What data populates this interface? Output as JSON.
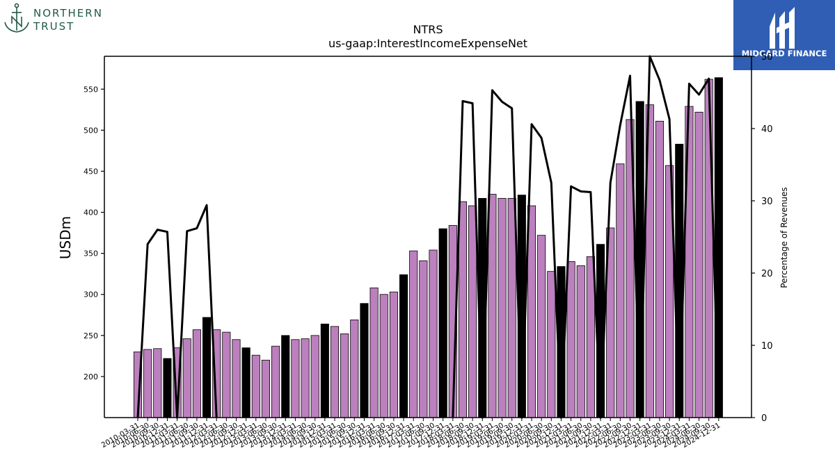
{
  "logos": {
    "left": {
      "line1": "NORTHERN",
      "line2": "TRUST"
    },
    "right": {
      "text": "MIDGARD FINANCE"
    }
  },
  "chart_data": {
    "type": "bar",
    "title": "NTRS",
    "subtitle": "us-gaap:InterestIncomeExpenseNet",
    "ylabel": "USDm",
    "y2label": "Percentage of Revenues",
    "ylim": [
      150,
      590
    ],
    "y2lim": [
      0,
      50
    ],
    "yticks": [
      200,
      250,
      300,
      350,
      400,
      450,
      500,
      550
    ],
    "y2ticks": [
      0,
      10,
      20,
      30,
      40,
      50
    ],
    "colors": {
      "bar": "#bb80bd",
      "bar_q4": "#000000",
      "line": "#000000",
      "axis": "#000000"
    },
    "categories": [
      "2010-03-31",
      "2010-06-30",
      "2010-09-30",
      "2010-12-31",
      "2011-03-31",
      "2011-06-30",
      "2011-09-30",
      "2011-12-31",
      "2012-03-31",
      "2012-06-30",
      "2012-09-30",
      "2012-12-31",
      "2013-03-31",
      "2013-06-30",
      "2013-09-30",
      "2013-12-31",
      "2014-03-31",
      "2014-06-30",
      "2014-09-30",
      "2014-12-31",
      "2015-03-31",
      "2015-06-30",
      "2015-09-30",
      "2015-12-31",
      "2016-03-31",
      "2016-06-30",
      "2016-09-30",
      "2016-12-31",
      "2017-03-31",
      "2017-06-30",
      "2017-09-30",
      "2017-12-31",
      "2018-03-31",
      "2018-06-30",
      "2018-09-30",
      "2018-12-31",
      "2019-03-31",
      "2019-06-30",
      "2019-09-30",
      "2019-12-31",
      "2020-03-31",
      "2020-06-30",
      "2020-09-30",
      "2020-12-31",
      "2021-03-31",
      "2021-06-30",
      "2021-09-30",
      "2021-12-31",
      "2022-03-31",
      "2022-06-30",
      "2022-09-30",
      "2022-12-31",
      "2023-03-31",
      "2023-06-30",
      "2023-09-30",
      "2023-12-31",
      "2024-03-31",
      "2024-06-30",
      "2024-09-30",
      "2024-12-31"
    ],
    "series": [
      {
        "type": "bar",
        "values": [
          230,
          233,
          234,
          222,
          235,
          246,
          257,
          272,
          257,
          254,
          245,
          235,
          226,
          220,
          237,
          250,
          245,
          246,
          250,
          264,
          261,
          252,
          269,
          289,
          308,
          300,
          303,
          324,
          353,
          341,
          354,
          380,
          384,
          413,
          408,
          417,
          422,
          417,
          417,
          421,
          408,
          372,
          328,
          334,
          340,
          335,
          346,
          361,
          381,
          459,
          513,
          535,
          531,
          511,
          457,
          483,
          529,
          522,
          562,
          564
        ]
      },
      {
        "type": "line",
        "axis": "right",
        "values": [
          0,
          24,
          26,
          25.7,
          0,
          25.8,
          26.2,
          29.4,
          0,
          null,
          null,
          null,
          null,
          null,
          null,
          null,
          null,
          null,
          null,
          null,
          null,
          null,
          null,
          null,
          null,
          null,
          null,
          null,
          null,
          null,
          null,
          null,
          0,
          43.8,
          43.5,
          0,
          45.3,
          43.7,
          42.8,
          0,
          40.6,
          38.7,
          32.5,
          0,
          32,
          31.3,
          31.2,
          0,
          32.5,
          40.5,
          47.3,
          0,
          50,
          46.7,
          41.3,
          0,
          46.2,
          44.7,
          46.9,
          0
        ]
      }
    ]
  }
}
